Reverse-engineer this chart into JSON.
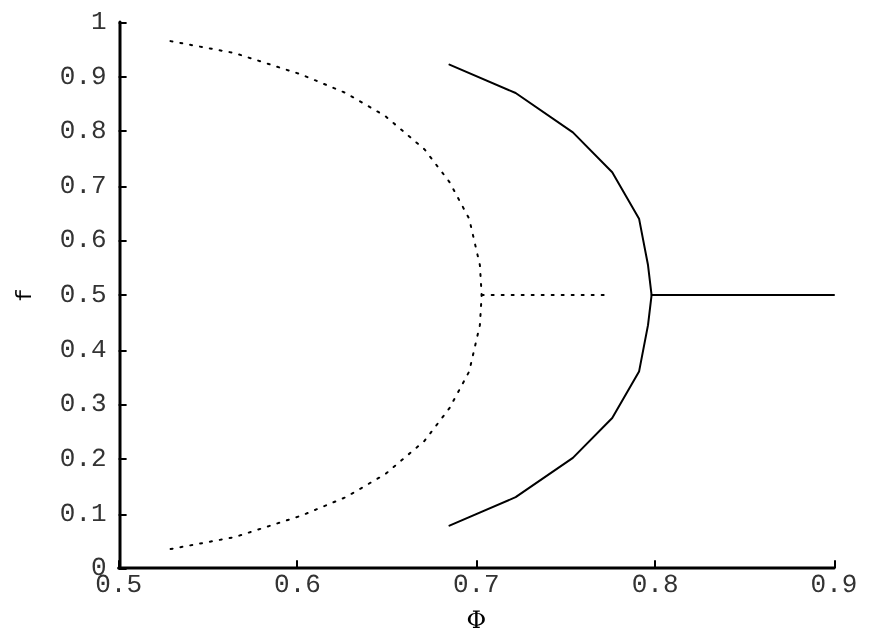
{
  "chart_data": {
    "type": "line",
    "xlabel": "Φ",
    "ylabel": "f",
    "xlim": [
      0.5,
      0.9
    ],
    "xticks": [
      0.5,
      0.6,
      0.7,
      0.8,
      0.9
    ],
    "ylim": [
      0,
      1
    ],
    "yticks": [
      0,
      0.1,
      0.2,
      0.3,
      0.4,
      0.5,
      0.6,
      0.7,
      0.8,
      0.9,
      1
    ],
    "marker": "none",
    "series": [
      {
        "color": "#000000",
        "line_style": "dotted",
        "x": [
          0.529,
          0.565,
          0.602,
          0.627,
          0.649,
          0.671,
          0.685,
          0.696,
          0.702,
          0.703,
          0.702,
          0.696,
          0.685,
          0.671,
          0.649,
          0.627,
          0.602,
          0.565,
          0.529
        ],
        "values": [
          0.965,
          0.943,
          0.904,
          0.87,
          0.828,
          0.767,
          0.707,
          0.64,
          0.555,
          0.5,
          0.445,
          0.36,
          0.293,
          0.233,
          0.172,
          0.13,
          0.096,
          0.057,
          0.035
        ]
      },
      {
        "color": "#000000",
        "line_style": "dotted",
        "x": [
          0.703,
          0.774
        ],
        "values": [
          0.5,
          0.5
        ]
      },
      {
        "color": "#000000",
        "line_style": "solid",
        "x": [
          0.685,
          0.722,
          0.754,
          0.776,
          0.791,
          0.796,
          0.798,
          0.796,
          0.791,
          0.776,
          0.754,
          0.722,
          0.685
        ],
        "values": [
          0.922,
          0.87,
          0.798,
          0.725,
          0.64,
          0.555,
          0.5,
          0.445,
          0.36,
          0.275,
          0.202,
          0.13,
          0.078
        ]
      },
      {
        "color": "#000000",
        "line_style": "solid",
        "x": [
          0.798,
          0.9
        ],
        "values": [
          0.5,
          0.5
        ]
      }
    ]
  }
}
